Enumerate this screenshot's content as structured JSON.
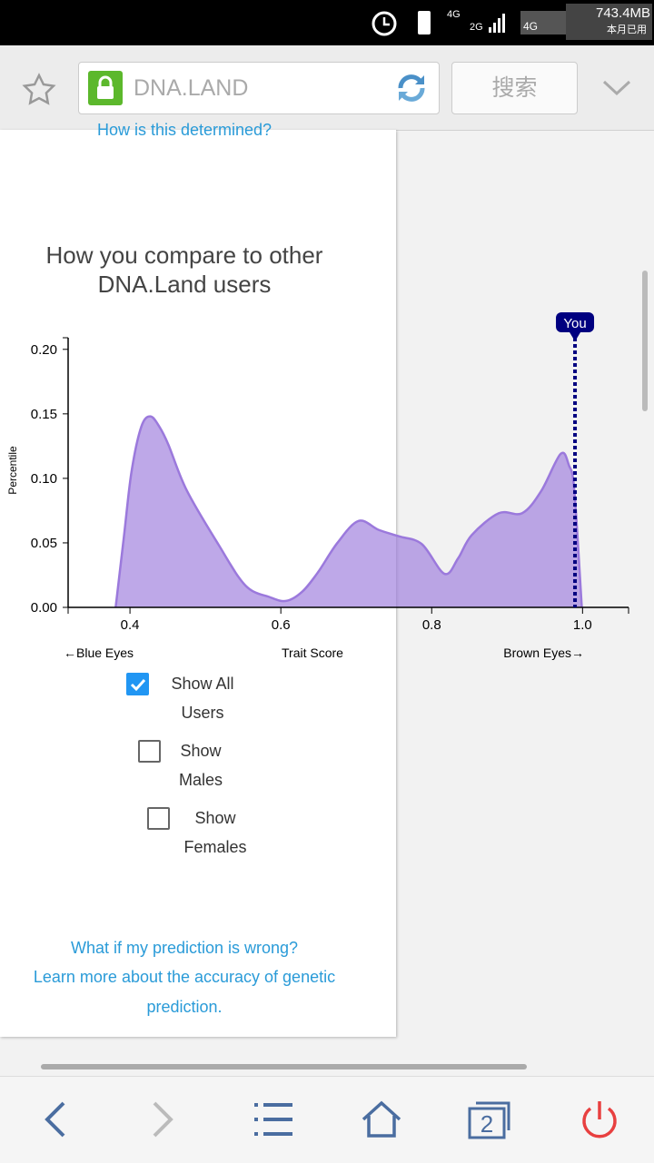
{
  "status_bar": {
    "network_1": "4G",
    "network_2": "2G",
    "network_3": "4G",
    "data_used": "743.4MB",
    "data_label": "本月已用"
  },
  "browser": {
    "url": "DNA.LAND",
    "search": "搜索",
    "tab_count": "2"
  },
  "page": {
    "top_link": "How is this determined?",
    "heading": "How you compare to other DNA.Land users",
    "checkboxes": [
      {
        "label": "Show All Users",
        "checked": true
      },
      {
        "label": "Show Males",
        "checked": false
      },
      {
        "label": "Show Females",
        "checked": false
      }
    ],
    "links": [
      "What if my prediction is wrong?",
      "Learn more about the accuracy of genetic prediction."
    ]
  },
  "chart_data": {
    "type": "area",
    "ylabel": "Percentile",
    "xlabel": "Trait Score",
    "left_note": "←Blue Eyes",
    "right_note": "Brown Eyes→",
    "marker_label": "You",
    "marker_x": 0.99,
    "marker_color": "#000080",
    "color": "#9b79dc",
    "x": [
      0.381,
      0.392,
      0.402,
      0.415,
      0.427,
      0.439,
      0.451,
      0.475,
      0.517,
      0.553,
      0.585,
      0.607,
      0.628,
      0.649,
      0.675,
      0.703,
      0.73,
      0.757,
      0.787,
      0.817,
      0.835,
      0.853,
      0.889,
      0.92,
      0.945,
      0.971,
      0.982,
      0.989,
      0.999
    ],
    "values": [
      0,
      0.055,
      0.105,
      0.14,
      0.148,
      0.14,
      0.126,
      0.091,
      0.049,
      0.017,
      0.008,
      0.005,
      0.012,
      0.027,
      0.05,
      0.067,
      0.06,
      0.055,
      0.049,
      0.026,
      0.038,
      0.056,
      0.073,
      0.073,
      0.09,
      0.119,
      0.11,
      0.091,
      0
    ],
    "xlim": [
      0.318,
      1.061
    ],
    "ylim": [
      0,
      0.209
    ],
    "xticks": [
      0.4,
      0.6,
      0.8,
      {
        "value": 1,
        "label": "1.0"
      }
    ],
    "yticks": [
      {
        "value": 0,
        "label": "0.00"
      },
      {
        "value": 0.05,
        "label": "0.05"
      },
      {
        "value": 0.1,
        "label": "0.10"
      },
      {
        "value": 0.15,
        "label": "0.15"
      },
      {
        "value": 0.2,
        "label": "0.20"
      }
    ]
  }
}
